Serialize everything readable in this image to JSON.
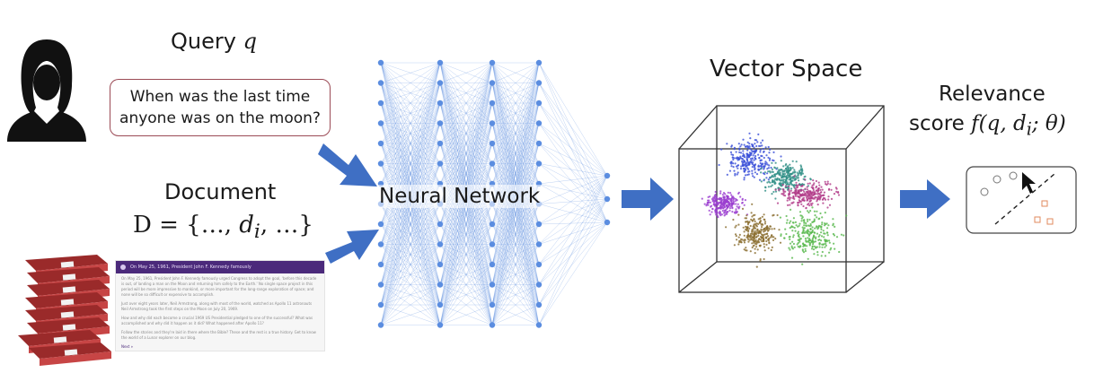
{
  "query": {
    "title": "Query",
    "variable": "q",
    "text_line1": "When was the last time",
    "text_line2": "anyone was on the moon?"
  },
  "document": {
    "title": "Document",
    "formula_prefix": "D = {…, ",
    "formula_var": "d",
    "formula_sub": "i",
    "formula_suffix": ", …}",
    "card_header": "On May 25, 1961, President John F. Kennedy famously",
    "card_paragraphs": [
      "On May 25, 1961, President John F. Kennedy famously urged Congress to adopt the goal, 'before this decade is out, of landing a man on the Moon and returning him safely to the Earth.' No single space project in this period will be more impressive to mankind, or more important for the long-range exploration of space; and none will be so difficult or expensive to accomplish.",
      "Just over eight years later, Neil Armstrong, along with most of the world, watched as Apollo 11 astronauts Neil Armstrong took the first steps on the Moon on July 20, 1969.",
      "How and why did each become a crucial 1969 US Presidential pledged to one of the successful? What was accomplished and why did it happen as it did? What happened after Apollo 11?",
      "Follow the stories and they're laid in there where the Bible? These and the rest is a true history. Get to know the world of a Lunar explorer on our blog."
    ],
    "card_more": "Next »"
  },
  "network": {
    "label": "Neural Network"
  },
  "vector_space": {
    "title": "Vector Space",
    "clusters": [
      {
        "name": "blue",
        "color": "#3a4fd8"
      },
      {
        "name": "teal",
        "color": "#2f8f86"
      },
      {
        "name": "purple",
        "color": "#9b3fcf"
      },
      {
        "name": "magenta",
        "color": "#b23b88"
      },
      {
        "name": "olive",
        "color": "#8a6d2e"
      },
      {
        "name": "green",
        "color": "#57b84c"
      }
    ]
  },
  "relevance": {
    "title": "Relevance",
    "score_prefix": "score ",
    "score_formula": "f(q, d",
    "score_sub": "i",
    "score_suffix": "; θ)"
  },
  "colors": {
    "arrow": "#3f6fc4",
    "network": "#5b8de0",
    "query_border": "#9b4a55"
  }
}
